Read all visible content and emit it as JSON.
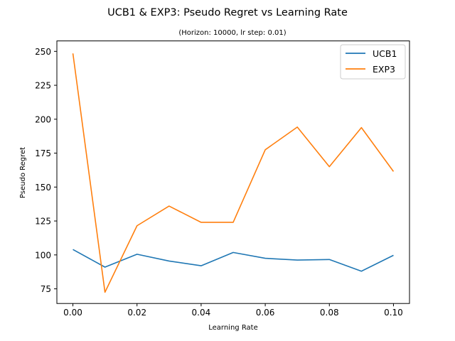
{
  "chart_data": {
    "type": "line",
    "title": "UCB1 & EXP3: Pseudo Regret vs Learning Rate",
    "subtitle": "(Horizon: 10000, lr step: 0.01)",
    "xlabel": "Learning Rate",
    "ylabel": "Pseudo Regret",
    "x": [
      0.0,
      0.01,
      0.02,
      0.03,
      0.04,
      0.05,
      0.06,
      0.07,
      0.08,
      0.09,
      0.1
    ],
    "xlim": [
      -0.005,
      0.105
    ],
    "ylim": [
      64.2,
      257.7
    ],
    "xticks": [
      "0.00",
      "0.02",
      "0.04",
      "0.06",
      "0.08",
      "0.10"
    ],
    "xtick_values": [
      0.0,
      0.02,
      0.04,
      0.06,
      0.08,
      0.1
    ],
    "yticks": [
      "75",
      "100",
      "125",
      "150",
      "175",
      "200",
      "225",
      "250"
    ],
    "ytick_values": [
      75,
      100,
      125,
      150,
      175,
      200,
      225,
      250
    ],
    "grid": false,
    "legend_position": "top-right",
    "series": [
      {
        "name": "UCB1",
        "color": "#1f77b4",
        "values": [
          104.0,
          91.0,
          100.5,
          95.5,
          92.0,
          101.8,
          97.5,
          96.2,
          96.6,
          88.0,
          99.7
        ]
      },
      {
        "name": "EXP3",
        "color": "#ff7f0e",
        "values": [
          248.5,
          72.5,
          121.5,
          136.0,
          124.0,
          124.0,
          177.5,
          194.2,
          165.0,
          193.8,
          161.5
        ]
      }
    ]
  }
}
